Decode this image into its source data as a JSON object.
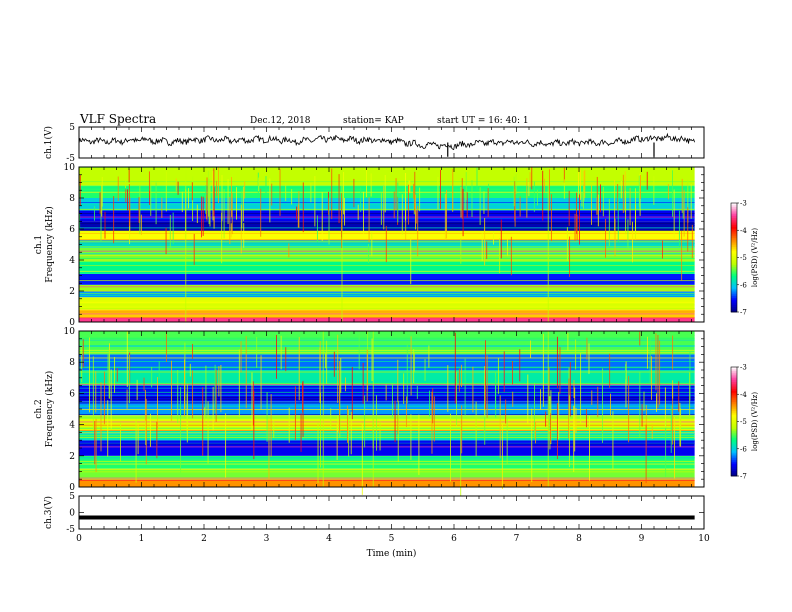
{
  "header": {
    "title": "VLF Spectra",
    "date": "Dec.12, 2018",
    "station": "station= KAP",
    "start": "start  UT =   16: 40: 1"
  },
  "chart_data": [
    {
      "type": "line",
      "panel": "ch1-waveform",
      "ylabel": "ch.1(V)",
      "ylim": [
        -5,
        5
      ],
      "yticks": [
        "5",
        "-5"
      ],
      "xlim": [
        0,
        10
      ],
      "x": [
        0,
        0.5,
        1,
        1.5,
        2,
        2.5,
        3,
        3.5,
        4,
        4.5,
        5,
        5.5,
        6,
        6.5,
        7,
        7.5,
        8,
        8.5,
        9,
        9.5,
        9.85
      ],
      "y": [
        0.5,
        0.3,
        0.9,
        0.2,
        1.0,
        0.6,
        1.1,
        0.4,
        1.2,
        0.8,
        0.5,
        -0.8,
        -1.0,
        -0.1,
        0.1,
        -0.4,
        0.0,
        -0.1,
        1.2,
        1.5,
        0.5
      ],
      "color": "#000000"
    },
    {
      "type": "heatmap",
      "panel": "ch1-spectrogram",
      "ylabel_line1": "ch.1",
      "ylabel_line2": "Frequency (kHz)",
      "ylim": [
        0,
        10
      ],
      "yticks": [
        "0",
        "2",
        "4",
        "6",
        "8",
        "10"
      ],
      "xlim": [
        0,
        9.85
      ],
      "colorbar": {
        "label": "log(PSD) (V²/Hz)",
        "range": [
          -7,
          -3
        ],
        "ticks": [
          "-3",
          "-4",
          "-5",
          "-6",
          "-7"
        ],
        "colors": [
          "#000080",
          "#0000ff",
          "#00c0ff",
          "#00ff80",
          "#c0ff00",
          "#ffff00",
          "#ff8000",
          "#ff0000",
          "#ff40a0",
          "#ffffff"
        ]
      },
      "bands_khz_logpsd": [
        [
          0.0,
          0.3,
          -3.5
        ],
        [
          0.3,
          0.8,
          -4.6
        ],
        [
          0.8,
          1.6,
          -5.0
        ],
        [
          1.6,
          2.0,
          -6.2
        ],
        [
          2.0,
          2.4,
          -5.3
        ],
        [
          2.4,
          3.1,
          -6.5
        ],
        [
          3.1,
          3.9,
          -5.7
        ],
        [
          3.9,
          4.8,
          -5.4
        ],
        [
          4.8,
          5.3,
          -5.9
        ],
        [
          5.3,
          5.9,
          -4.8
        ],
        [
          5.9,
          6.5,
          -6.8
        ],
        [
          6.5,
          7.2,
          -6.6
        ],
        [
          7.2,
          8.0,
          -6.0
        ],
        [
          8.0,
          8.8,
          -5.6
        ],
        [
          8.8,
          10.0,
          -5.2
        ]
      ]
    },
    {
      "type": "heatmap",
      "panel": "ch2-spectrogram",
      "ylabel_line1": "ch.2",
      "ylabel_line2": "Frequency (kHz)",
      "ylim": [
        0,
        10
      ],
      "yticks": [
        "0",
        "2",
        "4",
        "6",
        "8",
        "10"
      ],
      "xlim": [
        0,
        9.85
      ],
      "colorbar": {
        "label": "log(PSD) (V²/Hz)",
        "range": [
          -7,
          -3
        ],
        "ticks": [
          "-3",
          "-4",
          "-5",
          "-6",
          "-7"
        ],
        "colors": [
          "#000080",
          "#0000ff",
          "#00c0ff",
          "#00ff80",
          "#c0ff00",
          "#ffff00",
          "#ff8000",
          "#ff0000",
          "#ff40a0",
          "#ffffff"
        ]
      },
      "bands_khz_logpsd": [
        [
          0.0,
          0.5,
          -4.4
        ],
        [
          0.5,
          1.2,
          -5.4
        ],
        [
          1.2,
          2.0,
          -5.6
        ],
        [
          2.0,
          3.0,
          -6.6
        ],
        [
          3.0,
          3.6,
          -5.8
        ],
        [
          3.6,
          4.6,
          -5.0
        ],
        [
          4.6,
          5.5,
          -6.2
        ],
        [
          5.5,
          6.5,
          -6.6
        ],
        [
          6.5,
          7.5,
          -5.8
        ],
        [
          7.5,
          8.5,
          -6.3
        ],
        [
          8.5,
          10.0,
          -5.5
        ]
      ]
    },
    {
      "type": "line",
      "panel": "ch3-waveform",
      "ylabel": "ch.3(V)",
      "ylim": [
        -5,
        5
      ],
      "yticks": [
        "5",
        "0",
        "-5"
      ],
      "xlim": [
        0,
        10
      ],
      "xticks": [
        "0",
        "1",
        "2",
        "3",
        "4",
        "5",
        "6",
        "7",
        "8",
        "9",
        "10"
      ],
      "xlabel": "Time (min)",
      "x": [
        0,
        9.85
      ],
      "y": [
        -1.5,
        -1.5
      ],
      "color": "#000000"
    }
  ]
}
